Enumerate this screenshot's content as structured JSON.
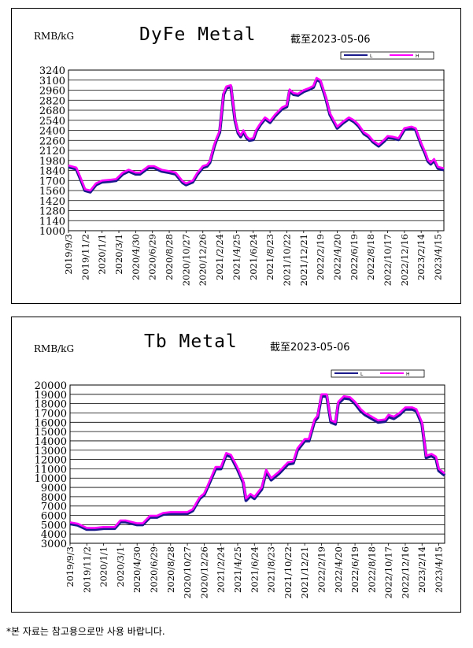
{
  "charts": [
    {
      "unit_label": "RMB/kG",
      "title": "DyFe Metal",
      "as_of": "截至2023-05-06",
      "legend": [
        "L",
        "H"
      ],
      "colors": {
        "low": "#1a1a8c",
        "high": "#ff00ff"
      }
    },
    {
      "unit_label": "RMB/kG",
      "title": "Tb Metal",
      "as_of": "截至2023-05-06",
      "legend": [
        "L",
        "H"
      ],
      "colors": {
        "low": "#1a1a8c",
        "high": "#ff00ff"
      }
    }
  ],
  "footnote": "*본 자료는 참고용으로만 사용 바랍니다.",
  "chart_data": [
    {
      "type": "line",
      "title": "DyFe Metal",
      "ylabel": "RMB/kG",
      "ylim": [
        1000,
        3240
      ],
      "yticks": [
        1000,
        1140,
        1280,
        1420,
        1560,
        1700,
        1840,
        1980,
        2120,
        2260,
        2400,
        2540,
        2680,
        2820,
        2960,
        3100,
        3240
      ],
      "xlim": [
        "2019-09-03",
        "2023-05-06"
      ],
      "xticks": [
        "2019/9/3",
        "2019/11/2",
        "2020/1/1",
        "2020/3/1",
        "2020/4/30",
        "2020/6/29",
        "2020/8/28",
        "2020/10/27",
        "2020/12/26",
        "2021/2/24",
        "2021/4/25",
        "2021/6/24",
        "2021/8/23",
        "2021/10/22",
        "2021/12/21",
        "2022/2/19",
        "2022/4/20",
        "2022/6/19",
        "2022/8/18",
        "2022/10/17",
        "2022/12/16",
        "2023/2/14",
        "2023/4/15"
      ],
      "grid": true,
      "legend_position": "top-right",
      "series": [
        {
          "name": "L",
          "x": [
            "2019-09-03",
            "2019-10-01",
            "2019-10-18",
            "2019-11-01",
            "2019-11-20",
            "2019-12-10",
            "2020-01-01",
            "2020-02-01",
            "2020-02-20",
            "2020-03-15",
            "2020-04-05",
            "2020-04-30",
            "2020-05-15",
            "2020-06-15",
            "2020-07-05",
            "2020-08-01",
            "2020-08-28",
            "2020-09-20",
            "2020-10-15",
            "2020-10-27",
            "2020-11-20",
            "2020-12-05",
            "2020-12-26",
            "2021-01-10",
            "2021-01-20",
            "2021-02-05",
            "2021-02-15",
            "2021-02-24",
            "2021-03-10",
            "2021-03-20",
            "2021-04-05",
            "2021-04-20",
            "2021-05-01",
            "2021-05-10",
            "2021-05-20",
            "2021-06-01",
            "2021-06-10",
            "2021-06-24",
            "2021-07-05",
            "2021-07-20",
            "2021-08-05",
            "2021-08-23",
            "2021-09-10",
            "2021-10-05",
            "2021-10-22",
            "2021-11-01",
            "2021-11-15",
            "2021-12-01",
            "2021-12-21",
            "2022-01-10",
            "2022-01-25",
            "2022-02-05",
            "2022-02-19",
            "2022-03-10",
            "2022-03-25",
            "2022-04-05",
            "2022-04-20",
            "2022-05-10",
            "2022-06-01",
            "2022-06-19",
            "2022-07-05",
            "2022-07-25",
            "2022-08-10",
            "2022-08-25",
            "2022-09-15",
            "2022-10-05",
            "2022-10-17",
            "2022-11-05",
            "2022-11-25",
            "2022-12-16",
            "2023-01-10",
            "2023-01-25",
            "2023-02-14",
            "2023-03-01",
            "2023-03-10",
            "2023-03-20",
            "2023-04-01",
            "2023-04-15",
            "2023-05-06"
          ],
          "values": [
            1890,
            1860,
            1700,
            1560,
            1540,
            1640,
            1680,
            1690,
            1700,
            1790,
            1830,
            1790,
            1790,
            1880,
            1880,
            1830,
            1810,
            1790,
            1670,
            1640,
            1680,
            1780,
            1880,
            1900,
            1950,
            2180,
            2290,
            2370,
            2900,
            2990,
            3010,
            2540,
            2360,
            2310,
            2380,
            2290,
            2260,
            2270,
            2390,
            2480,
            2560,
            2510,
            2600,
            2700,
            2730,
            2950,
            2900,
            2890,
            2940,
            2970,
            3000,
            3110,
            3080,
            2850,
            2620,
            2540,
            2430,
            2500,
            2560,
            2520,
            2460,
            2350,
            2310,
            2240,
            2180,
            2250,
            2300,
            2290,
            2270,
            2410,
            2430,
            2410,
            2200,
            2070,
            1970,
            1930,
            1980,
            1870,
            1850
          ]
        },
        {
          "name": "H",
          "x": [
            "2019-09-03",
            "2019-10-01",
            "2019-10-18",
            "2019-11-01",
            "2019-11-20",
            "2019-12-10",
            "2020-01-01",
            "2020-02-01",
            "2020-02-20",
            "2020-03-15",
            "2020-04-05",
            "2020-04-30",
            "2020-05-15",
            "2020-06-15",
            "2020-07-05",
            "2020-08-01",
            "2020-08-28",
            "2020-09-20",
            "2020-10-15",
            "2020-10-27",
            "2020-11-20",
            "2020-12-05",
            "2020-12-26",
            "2021-01-10",
            "2021-01-20",
            "2021-02-05",
            "2021-02-15",
            "2021-02-24",
            "2021-03-10",
            "2021-03-20",
            "2021-04-05",
            "2021-04-20",
            "2021-05-01",
            "2021-05-10",
            "2021-05-20",
            "2021-06-01",
            "2021-06-10",
            "2021-06-24",
            "2021-07-05",
            "2021-07-20",
            "2021-08-05",
            "2021-08-23",
            "2021-09-10",
            "2021-10-05",
            "2021-10-22",
            "2021-11-01",
            "2021-11-15",
            "2021-12-01",
            "2021-12-21",
            "2022-01-10",
            "2022-01-25",
            "2022-02-05",
            "2022-02-19",
            "2022-03-10",
            "2022-03-25",
            "2022-04-05",
            "2022-04-20",
            "2022-05-10",
            "2022-06-01",
            "2022-06-19",
            "2022-07-05",
            "2022-07-25",
            "2022-08-10",
            "2022-08-25",
            "2022-09-15",
            "2022-10-05",
            "2022-10-17",
            "2022-11-05",
            "2022-11-25",
            "2022-12-16",
            "2023-01-10",
            "2023-01-25",
            "2023-02-14",
            "2023-03-01",
            "2023-03-10",
            "2023-03-20",
            "2023-04-01",
            "2023-04-15",
            "2023-05-06"
          ],
          "values": [
            1910,
            1880,
            1720,
            1580,
            1560,
            1660,
            1700,
            1710,
            1720,
            1810,
            1850,
            1810,
            1810,
            1900,
            1900,
            1850,
            1830,
            1810,
            1690,
            1660,
            1700,
            1800,
            1900,
            1920,
            1970,
            2200,
            2310,
            2390,
            2920,
            3010,
            3030,
            2560,
            2380,
            2330,
            2400,
            2310,
            2280,
            2290,
            2410,
            2500,
            2580,
            2530,
            2620,
            2720,
            2750,
            2970,
            2920,
            2910,
            2960,
            2990,
            3020,
            3130,
            3100,
            2870,
            2640,
            2560,
            2450,
            2520,
            2580,
            2540,
            2480,
            2370,
            2330,
            2260,
            2200,
            2270,
            2320,
            2310,
            2290,
            2430,
            2450,
            2430,
            2220,
            2090,
            1990,
            1950,
            2000,
            1890,
            1870
          ]
        }
      ]
    },
    {
      "type": "line",
      "title": "Tb Metal",
      "ylabel": "RMB/kG",
      "ylim": [
        3000,
        20000
      ],
      "yticks": [
        3000,
        4000,
        5000,
        6000,
        7000,
        8000,
        9000,
        10000,
        11000,
        12000,
        13000,
        14000,
        15000,
        16000,
        17000,
        18000,
        19000,
        20000
      ],
      "xlim": [
        "2019-09-03",
        "2023-05-06"
      ],
      "xticks": [
        "2019/9/3",
        "2019/11/2",
        "2020/1/1",
        "2020/3/1",
        "2020/4/30",
        "2020/6/29",
        "2020/8/28",
        "2020/10/27",
        "2020/12/26",
        "2021/2/24",
        "2021/4/25",
        "2021/6/24",
        "2021/8/23",
        "2021/10/22",
        "2021/12/21",
        "2022/2/19",
        "2022/4/20",
        "2022/6/19",
        "2022/8/18",
        "2022/10/17",
        "2022/12/16",
        "2023/2/14",
        "2023/4/15"
      ],
      "grid": true,
      "legend_position": "top-right",
      "series": [
        {
          "name": "L",
          "x": [
            "2019-09-03",
            "2019-10-01",
            "2019-11-02",
            "2019-12-01",
            "2020-01-01",
            "2020-02-10",
            "2020-03-01",
            "2020-03-20",
            "2020-04-30",
            "2020-05-20",
            "2020-06-15",
            "2020-07-10",
            "2020-08-01",
            "2020-08-28",
            "2020-10-01",
            "2020-10-27",
            "2020-11-15",
            "2020-12-10",
            "2020-12-26",
            "2021-01-10",
            "2021-02-05",
            "2021-02-24",
            "2021-03-15",
            "2021-04-01",
            "2021-04-25",
            "2021-05-15",
            "2021-05-25",
            "2021-06-10",
            "2021-06-24",
            "2021-07-20",
            "2021-08-05",
            "2021-08-23",
            "2021-09-20",
            "2021-10-22",
            "2021-11-10",
            "2021-11-25",
            "2021-12-21",
            "2022-01-05",
            "2022-01-25",
            "2022-02-05",
            "2022-02-19",
            "2022-03-10",
            "2022-03-25",
            "2022-04-10",
            "2022-04-20",
            "2022-05-10",
            "2022-06-01",
            "2022-06-19",
            "2022-07-10",
            "2022-07-25",
            "2022-08-18",
            "2022-09-10",
            "2022-10-05",
            "2022-10-17",
            "2022-11-05",
            "2022-11-25",
            "2022-12-16",
            "2023-01-10",
            "2023-01-25",
            "2023-02-14",
            "2023-03-01",
            "2023-03-20",
            "2023-04-05",
            "2023-04-15",
            "2023-05-06"
          ],
          "values": [
            5100,
            4950,
            4500,
            4500,
            4600,
            4600,
            5300,
            5300,
            5000,
            5000,
            5800,
            5800,
            6100,
            6200,
            6200,
            6200,
            6500,
            7800,
            8200,
            9200,
            11000,
            11000,
            12500,
            12300,
            10900,
            9500,
            7600,
            8100,
            7800,
            8800,
            10700,
            9800,
            10500,
            11500,
            11600,
            13000,
            14000,
            14000,
            16100,
            16500,
            18800,
            18800,
            16000,
            15800,
            18000,
            18600,
            18500,
            18000,
            17200,
            16800,
            16400,
            16000,
            16100,
            16600,
            16400,
            16800,
            17400,
            17400,
            17200,
            15800,
            12200,
            12400,
            12100,
            10800,
            10300
          ]
        },
        {
          "name": "H",
          "x": [
            "2019-09-03",
            "2019-10-01",
            "2019-11-02",
            "2019-12-01",
            "2020-01-01",
            "2020-02-10",
            "2020-03-01",
            "2020-03-20",
            "2020-04-30",
            "2020-05-20",
            "2020-06-15",
            "2020-07-10",
            "2020-08-01",
            "2020-08-28",
            "2020-10-01",
            "2020-10-27",
            "2020-11-15",
            "2020-12-10",
            "2020-12-26",
            "2021-01-10",
            "2021-02-05",
            "2021-02-24",
            "2021-03-15",
            "2021-04-01",
            "2021-04-25",
            "2021-05-15",
            "2021-05-25",
            "2021-06-10",
            "2021-06-24",
            "2021-07-20",
            "2021-08-05",
            "2021-08-23",
            "2021-09-20",
            "2021-10-22",
            "2021-11-10",
            "2021-11-25",
            "2021-12-21",
            "2022-01-05",
            "2022-01-25",
            "2022-02-05",
            "2022-02-19",
            "2022-03-10",
            "2022-03-25",
            "2022-04-10",
            "2022-04-20",
            "2022-05-10",
            "2022-06-01",
            "2022-06-19",
            "2022-07-10",
            "2022-07-25",
            "2022-08-18",
            "2022-09-10",
            "2022-10-05",
            "2022-10-17",
            "2022-11-05",
            "2022-11-25",
            "2022-12-16",
            "2023-01-10",
            "2023-01-25",
            "2023-02-14",
            "2023-03-01",
            "2023-03-20",
            "2023-04-05",
            "2023-04-15",
            "2023-05-06"
          ],
          "values": [
            5250,
            5100,
            4650,
            4650,
            4750,
            4750,
            5450,
            5450,
            5150,
            5150,
            5950,
            5950,
            6250,
            6350,
            6350,
            6350,
            6650,
            7950,
            8350,
            9350,
            11200,
            11200,
            12700,
            12500,
            11100,
            9700,
            7800,
            8300,
            8000,
            9000,
            10900,
            10000,
            10700,
            11700,
            11800,
            13200,
            14200,
            14200,
            16300,
            16700,
            19000,
            19000,
            16200,
            16000,
            18200,
            18800,
            18700,
            18200,
            17400,
            17000,
            16600,
            16200,
            16300,
            16800,
            16600,
            17000,
            17600,
            17600,
            17400,
            16000,
            12400,
            12600,
            12300,
            11000,
            10500
          ]
        }
      ]
    }
  ]
}
